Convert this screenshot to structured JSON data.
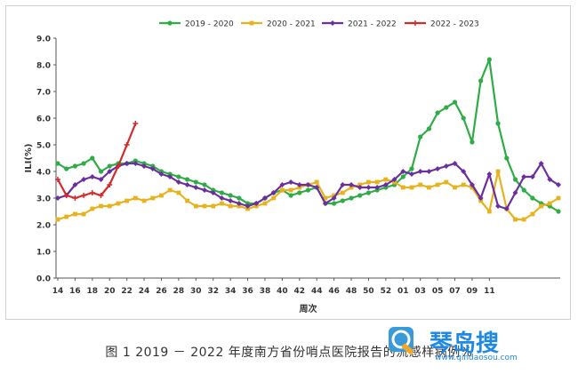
{
  "chart_data": {
    "type": "line",
    "xlabel": "周次",
    "ylabel": "ILI(%)",
    "ylim": [
      0,
      9
    ],
    "yticks": [
      "0.0",
      "1.0",
      "2.0",
      "3.0",
      "4.0",
      "5.0",
      "6.0",
      "7.0",
      "8.0",
      "9.0"
    ],
    "x_ticks": [
      "14",
      "16",
      "18",
      "20",
      "22",
      "24",
      "26",
      "28",
      "30",
      "32",
      "34",
      "36",
      "38",
      "40",
      "42",
      "44",
      "46",
      "48",
      "50",
      "52",
      "01",
      "03",
      "05",
      "07",
      "09",
      "11"
    ],
    "legend_position": "top",
    "grid": false,
    "series": [
      {
        "name": "2019 - 2020",
        "color": "#2eac45",
        "marker": "circle",
        "values": [
          4.3,
          4.1,
          4.2,
          4.3,
          4.5,
          4.0,
          4.2,
          4.3,
          4.3,
          4.4,
          4.3,
          4.2,
          4.0,
          3.9,
          3.8,
          3.7,
          3.6,
          3.5,
          3.3,
          3.2,
          3.1,
          3.0,
          2.8,
          2.8,
          3.0,
          3.2,
          3.3,
          3.1,
          3.2,
          3.3,
          3.4,
          2.8,
          2.8,
          2.9,
          3.0,
          3.1,
          3.2,
          3.3,
          3.4,
          3.5,
          3.8,
          4.1,
          5.3,
          5.6,
          6.2,
          6.4,
          6.6,
          6.0,
          5.1,
          7.4,
          8.2,
          5.8,
          4.5,
          3.7,
          3.3,
          3.0,
          2.8,
          2.7,
          2.5
        ]
      },
      {
        "name": "2020 - 2021",
        "color": "#e6b21e",
        "marker": "square",
        "values": [
          2.2,
          2.3,
          2.4,
          2.4,
          2.6,
          2.7,
          2.7,
          2.8,
          2.9,
          3.0,
          2.9,
          3.0,
          3.1,
          3.3,
          3.2,
          2.9,
          2.7,
          2.7,
          2.7,
          2.8,
          2.7,
          2.7,
          2.6,
          2.7,
          2.8,
          3.0,
          3.3,
          3.3,
          3.4,
          3.5,
          3.6,
          3.0,
          3.1,
          3.2,
          3.4,
          3.5,
          3.6,
          3.6,
          3.7,
          3.6,
          3.4,
          3.4,
          3.5,
          3.4,
          3.5,
          3.6,
          3.4,
          3.5,
          3.4,
          2.9,
          2.5,
          4.0,
          2.6,
          2.2,
          2.2,
          2.4,
          2.7,
          2.8,
          3.0
        ]
      },
      {
        "name": "2021 - 2022",
        "color": "#6a2e9e",
        "marker": "diamond",
        "values": [
          3.0,
          3.1,
          3.5,
          3.7,
          3.8,
          3.7,
          4.0,
          4.2,
          4.3,
          4.3,
          4.2,
          4.1,
          3.9,
          3.8,
          3.6,
          3.5,
          3.4,
          3.3,
          3.2,
          3.0,
          2.9,
          2.8,
          2.7,
          2.8,
          3.0,
          3.2,
          3.5,
          3.6,
          3.5,
          3.5,
          3.4,
          2.8,
          3.0,
          3.5,
          3.5,
          3.4,
          3.4,
          3.4,
          3.5,
          3.7,
          4.0,
          3.9,
          4.0,
          4.0,
          4.1,
          4.2,
          4.3,
          4.0,
          3.5,
          3.0,
          3.9,
          2.7,
          2.6,
          3.2,
          3.8,
          3.8,
          4.3,
          3.7,
          3.5
        ]
      },
      {
        "name": "2022 - 2023",
        "color": "#d22b2b",
        "marker": "plus",
        "values": [
          3.7,
          3.1,
          3.0,
          3.1,
          3.2,
          3.1,
          3.5,
          4.2,
          5.0,
          5.8
        ]
      }
    ]
  },
  "caption": "图 1 2019 － 2022 年度南方省份哨点医院报告的流感样病例%",
  "watermark": {
    "text": "琴岛搜",
    "subtext": "www.qindaosou.com"
  }
}
